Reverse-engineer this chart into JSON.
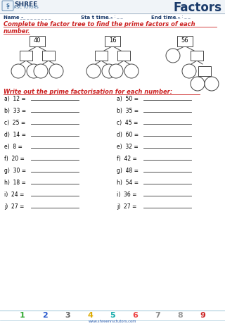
{
  "title": "Factors",
  "logo_shree": "SHREE",
  "logo_sub": "RSC TUTORS",
  "name_label": "Name -",
  "name_dashes": "_ _ _ _ _ _ _ _ _",
  "start_label": "Sta t time -",
  "start_dashes": "_ _ : _ _",
  "end_label": "End time -",
  "end_dashes": "_ _ : _ _",
  "instruction": "Complete the factor tree to find the prime factors of each",
  "instruction2": "number.",
  "section2": "Write out the prime factorisation for each number:",
  "tree_numbers": [
    "40",
    "16",
    "56"
  ],
  "left_col": [
    "a)  12 =",
    "b)  33 =",
    "c)  25 =",
    "d)  14 =",
    "e)  8 =",
    "f)  20 =",
    "g)  30 =",
    "h)  18 =",
    "i)  24 =",
    "j)  27 ="
  ],
  "right_col": [
    "a)  50 =",
    "b)  35 =",
    "c)  45 =",
    "d)  60 =",
    "e)  32 =",
    "f)  42 =",
    "g)  48 =",
    "h)  54 =",
    "i)  36 =",
    "j)  27 ="
  ],
  "footer_numbers": [
    "1",
    "2",
    "3",
    "4",
    "5",
    "6",
    "7",
    "8",
    "9"
  ],
  "footer_colors": [
    "#33aa33",
    "#2255cc",
    "#666666",
    "#ddaa00",
    "#11aaaa",
    "#ee4444",
    "#888888",
    "#999999",
    "#cc2222"
  ],
  "accent_color": "#cc2222",
  "header_color": "#1a3a6a",
  "blue_color": "#2255aa",
  "bg_color": "#ffffff",
  "line_color": "#333333",
  "tree_line_color": "#666666"
}
